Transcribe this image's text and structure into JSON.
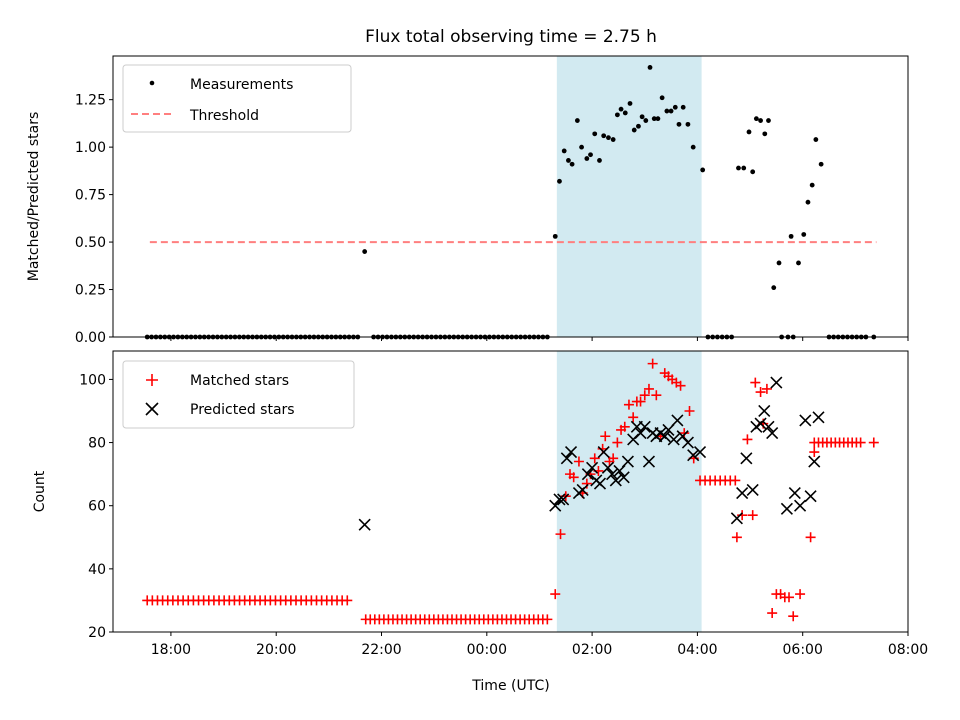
{
  "title": "Flux total observing time = 2.75 h",
  "x_axis": {
    "label": "Time (UTC)",
    "tick_labels": [
      "18:00",
      "20:00",
      "22:00",
      "00:00",
      "02:00",
      "04:00",
      "06:00",
      "08:00"
    ],
    "tick_hours": [
      18,
      20,
      22,
      24,
      26,
      28,
      30,
      32
    ],
    "range_hours": [
      16.9,
      32.0
    ]
  },
  "shaded_interval_hours": [
    25.33,
    28.08
  ],
  "colors": {
    "shade": "#add8e6",
    "measurement": "#000000",
    "threshold": "#ff7f7f",
    "matched": "#ff0000",
    "predicted": "#000000"
  },
  "chart_data": [
    {
      "type": "scatter",
      "name": "ratio",
      "ylabel": "Matched/Predicted stars",
      "ylim": [
        0,
        1.48
      ],
      "yticks": [
        0.0,
        0.25,
        0.5,
        0.75,
        1.0,
        1.25
      ],
      "ytick_labels": [
        "0.00",
        "0.25",
        "0.50",
        "0.75",
        "1.00",
        "1.25"
      ],
      "legend": [
        "Measurements",
        "Threshold"
      ],
      "threshold": {
        "value": 0.5,
        "x_range": [
          17.6,
          31.4
        ]
      },
      "segments": [
        {
          "start": 17.55,
          "end": 21.55,
          "count": 49,
          "value": 0
        },
        {
          "start": 21.85,
          "end": 25.15,
          "count": 40,
          "value": 0
        },
        {
          "start": 28.2,
          "end": 28.65,
          "count": 6,
          "value": 0
        },
        {
          "start": 30.5,
          "end": 31.2,
          "count": 9,
          "value": 0
        }
      ],
      "points": [
        [
          21.68,
          0.45
        ],
        [
          31.35,
          0.0
        ],
        [
          29.6,
          0.0
        ],
        [
          29.72,
          0.0
        ],
        [
          29.82,
          0.0
        ],
        [
          25.3,
          0.53
        ],
        [
          25.38,
          0.82
        ],
        [
          25.47,
          0.98
        ],
        [
          25.55,
          0.93
        ],
        [
          25.62,
          0.91
        ],
        [
          25.72,
          1.14
        ],
        [
          25.8,
          1.0
        ],
        [
          25.9,
          0.94
        ],
        [
          25.97,
          0.96
        ],
        [
          26.05,
          1.07
        ],
        [
          26.14,
          0.93
        ],
        [
          26.22,
          1.06
        ],
        [
          26.31,
          1.05
        ],
        [
          26.4,
          1.04
        ],
        [
          26.48,
          1.17
        ],
        [
          26.55,
          1.2
        ],
        [
          26.63,
          1.18
        ],
        [
          26.72,
          1.23
        ],
        [
          26.8,
          1.09
        ],
        [
          26.88,
          1.11
        ],
        [
          26.95,
          1.16
        ],
        [
          27.02,
          1.14
        ],
        [
          27.1,
          1.42
        ],
        [
          27.18,
          1.15
        ],
        [
          27.25,
          1.15
        ],
        [
          27.33,
          1.26
        ],
        [
          27.42,
          1.19
        ],
        [
          27.5,
          1.19
        ],
        [
          27.58,
          1.21
        ],
        [
          27.65,
          1.12
        ],
        [
          27.73,
          1.21
        ],
        [
          27.82,
          1.12
        ],
        [
          27.92,
          1.0
        ],
        [
          28.1,
          0.88
        ],
        [
          28.78,
          0.89
        ],
        [
          28.88,
          0.89
        ],
        [
          28.98,
          1.08
        ],
        [
          29.05,
          0.87
        ],
        [
          29.12,
          1.15
        ],
        [
          29.2,
          1.14
        ],
        [
          29.28,
          1.07
        ],
        [
          29.35,
          1.14
        ],
        [
          29.45,
          0.26
        ],
        [
          29.55,
          0.39
        ],
        [
          29.78,
          0.53
        ],
        [
          29.92,
          0.39
        ],
        [
          30.02,
          0.54
        ],
        [
          30.1,
          0.71
        ],
        [
          30.18,
          0.8
        ],
        [
          30.25,
          1.04
        ],
        [
          30.35,
          0.91
        ]
      ]
    },
    {
      "type": "scatter",
      "name": "counts",
      "ylabel": "Count",
      "ylim": [
        20,
        109
      ],
      "yticks": [
        20,
        40,
        60,
        80,
        100
      ],
      "ytick_labels": [
        "20",
        "40",
        "60",
        "80",
        "100"
      ],
      "legend": [
        "Matched stars",
        "Predicted stars"
      ],
      "matched_segments": [
        {
          "start": 17.55,
          "end": 21.35,
          "count": 40,
          "value": 30
        },
        {
          "start": 21.7,
          "end": 25.15,
          "count": 41,
          "value": 24
        },
        {
          "start": 28.05,
          "end": 28.72,
          "count": 8,
          "value": 68
        },
        {
          "start": 30.22,
          "end": 31.1,
          "count": 12,
          "value": 80
        }
      ],
      "matched": [
        [
          31.35,
          80
        ],
        [
          25.3,
          32
        ],
        [
          25.4,
          51
        ],
        [
          25.5,
          63
        ],
        [
          25.58,
          70
        ],
        [
          25.65,
          69
        ],
        [
          25.75,
          74
        ],
        [
          25.82,
          64
        ],
        [
          25.9,
          67
        ],
        [
          25.97,
          70
        ],
        [
          26.05,
          75
        ],
        [
          26.12,
          71
        ],
        [
          26.2,
          78
        ],
        [
          26.25,
          82
        ],
        [
          26.33,
          74
        ],
        [
          26.4,
          75
        ],
        [
          26.48,
          80
        ],
        [
          26.55,
          84
        ],
        [
          26.62,
          85
        ],
        [
          26.7,
          92
        ],
        [
          26.78,
          88
        ],
        [
          26.85,
          93
        ],
        [
          26.92,
          93
        ],
        [
          27.0,
          95
        ],
        [
          27.08,
          97
        ],
        [
          27.15,
          105
        ],
        [
          27.22,
          95
        ],
        [
          27.3,
          82
        ],
        [
          27.38,
          102
        ],
        [
          27.45,
          101
        ],
        [
          27.52,
          100
        ],
        [
          27.6,
          99
        ],
        [
          27.68,
          98
        ],
        [
          27.75,
          83
        ],
        [
          27.85,
          90
        ],
        [
          27.93,
          75
        ],
        [
          28.75,
          50
        ],
        [
          28.85,
          57
        ],
        [
          28.95,
          81
        ],
        [
          29.05,
          57
        ],
        [
          29.1,
          99
        ],
        [
          29.2,
          96
        ],
        [
          29.25,
          86
        ],
        [
          29.32,
          97
        ],
        [
          29.42,
          26
        ],
        [
          29.5,
          32
        ],
        [
          29.58,
          32
        ],
        [
          29.66,
          31
        ],
        [
          29.74,
          31
        ],
        [
          29.82,
          25
        ],
        [
          29.95,
          32
        ],
        [
          30.15,
          50
        ],
        [
          30.22,
          77
        ]
      ],
      "predicted": [
        [
          21.68,
          54
        ],
        [
          25.3,
          60
        ],
        [
          25.38,
          62
        ],
        [
          25.45,
          62
        ],
        [
          25.52,
          75
        ],
        [
          25.6,
          77
        ],
        [
          25.75,
          64
        ],
        [
          25.82,
          65
        ],
        [
          25.92,
          70
        ],
        [
          26.0,
          72
        ],
        [
          26.08,
          68
        ],
        [
          26.15,
          67
        ],
        [
          26.22,
          77
        ],
        [
          26.3,
          72
        ],
        [
          26.38,
          70
        ],
        [
          26.45,
          68
        ],
        [
          26.52,
          71
        ],
        [
          26.6,
          69
        ],
        [
          26.68,
          74
        ],
        [
          26.78,
          81
        ],
        [
          26.85,
          85
        ],
        [
          26.92,
          83
        ],
        [
          27.0,
          85
        ],
        [
          27.08,
          74
        ],
        [
          27.15,
          83
        ],
        [
          27.22,
          82
        ],
        [
          27.3,
          83
        ],
        [
          27.38,
          82
        ],
        [
          27.45,
          84
        ],
        [
          27.55,
          81
        ],
        [
          27.62,
          87
        ],
        [
          27.72,
          82
        ],
        [
          27.82,
          80
        ],
        [
          27.92,
          76
        ],
        [
          28.05,
          77
        ],
        [
          28.75,
          56
        ],
        [
          28.85,
          64
        ],
        [
          28.93,
          75
        ],
        [
          29.05,
          65
        ],
        [
          29.12,
          85
        ],
        [
          29.2,
          86
        ],
        [
          29.27,
          90
        ],
        [
          29.35,
          85
        ],
        [
          29.42,
          83
        ],
        [
          29.5,
          99
        ],
        [
          29.7,
          59
        ],
        [
          29.85,
          64
        ],
        [
          29.95,
          60
        ],
        [
          30.05,
          87
        ],
        [
          30.15,
          63
        ],
        [
          30.22,
          74
        ],
        [
          30.3,
          88
        ]
      ]
    }
  ]
}
